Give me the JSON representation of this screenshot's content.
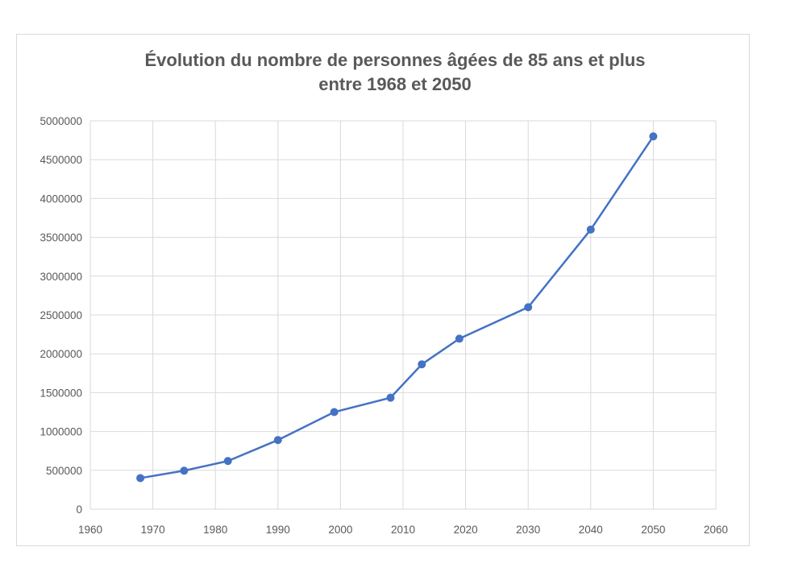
{
  "chart_data": {
    "type": "line",
    "title_line1": "Évolution du nombre de personnes âgées de 85 ans et plus",
    "title_line2": "entre 1968 et 2050",
    "xlabel": "",
    "ylabel": "",
    "xlim": [
      1960,
      2060
    ],
    "ylim": [
      0,
      5000000
    ],
    "x_ticks": [
      1960,
      1970,
      1980,
      1990,
      2000,
      2010,
      2020,
      2030,
      2040,
      2050,
      2060
    ],
    "y_ticks": [
      0,
      500000,
      1000000,
      1500000,
      2000000,
      2500000,
      3000000,
      3500000,
      4000000,
      4500000,
      5000000
    ],
    "grid": true,
    "legend": "none",
    "series": [
      {
        "color": "#4472c4",
        "x": [
          1968,
          1975,
          1982,
          1990,
          1999,
          2008,
          2013,
          2019,
          2030,
          2040,
          2050
        ],
        "y": [
          400000,
          495000,
          620000,
          890000,
          1250000,
          1435000,
          1865000,
          2195000,
          2600000,
          3600000,
          4800000
        ]
      }
    ]
  }
}
